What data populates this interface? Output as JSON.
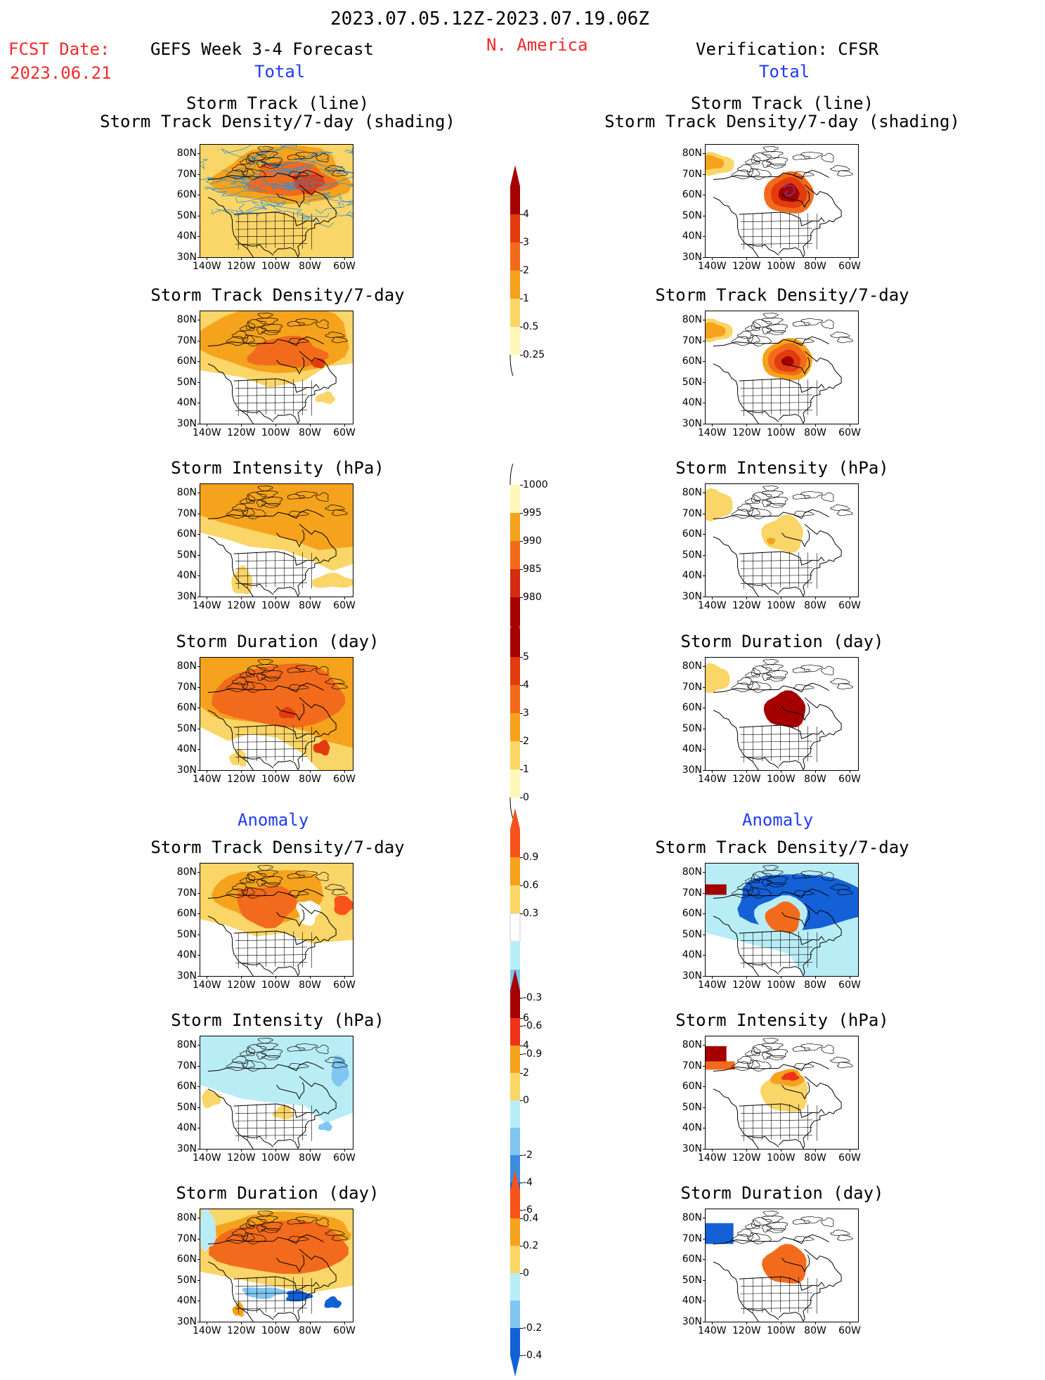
{
  "header": {
    "period": "2023.07.05.12Z-2023.07.19.06Z",
    "fcst_label": "FCST Date:",
    "fcst_date": "2023.06.21",
    "forecast_title": "GEFS Week 3-4 Forecast",
    "region": "N. America",
    "verification_title": "Verification: CFSR",
    "total_left": "Total",
    "total_right": "Total",
    "anomaly_left": "Anomaly",
    "anomaly_right": "Anomaly"
  },
  "axis": {
    "lat_labels": [
      "80N",
      "70N",
      "60N",
      "50N",
      "40N",
      "30N"
    ],
    "lon_labels": [
      "140W",
      "120W",
      "100W",
      "80W",
      "60W"
    ]
  },
  "panels": {
    "left": [
      {
        "title1": "Storm Track (line)",
        "title2": "Storm Track Density/7-day (shading)",
        "style": "tracks_fcst"
      },
      {
        "title1": "Storm Track Density/7-day",
        "title2": "",
        "style": "density_fcst"
      },
      {
        "title1": "Storm Intensity (hPa)",
        "title2": "",
        "style": "intensity_fcst"
      },
      {
        "title1": "Storm Duration (day)",
        "title2": "",
        "style": "duration_fcst"
      },
      {
        "title1": "Storm Track Density/7-day",
        "title2": "",
        "style": "anom_density_fcst"
      },
      {
        "title1": "Storm Intensity (hPa)",
        "title2": "",
        "style": "anom_intensity_fcst"
      },
      {
        "title1": "Storm Duration (day)",
        "title2": "",
        "style": "anom_duration_fcst"
      }
    ],
    "right": [
      {
        "title1": "Storm Track (line)",
        "title2": "Storm Track Density/7-day (shading)",
        "style": "tracks_obs"
      },
      {
        "title1": "Storm Track Density/7-day",
        "title2": "",
        "style": "density_obs"
      },
      {
        "title1": "Storm Intensity (hPa)",
        "title2": "",
        "style": "intensity_obs"
      },
      {
        "title1": "Storm Duration (day)",
        "title2": "",
        "style": "duration_obs"
      },
      {
        "title1": "Storm Track Density/7-day",
        "title2": "",
        "style": "anom_density_obs"
      },
      {
        "title1": "Storm Intensity (hPa)",
        "title2": "",
        "style": "anom_intensity_obs"
      },
      {
        "title1": "Storm Duration (day)",
        "title2": "",
        "style": "anom_duration_obs"
      }
    ]
  },
  "colorbars": [
    {
      "name": "density",
      "labels": [
        "4",
        "3",
        "2",
        "1",
        "0.5",
        "0.25"
      ],
      "colors": [
        "#a50000",
        "#e23b0e",
        "#f26b1c",
        "#f5a21d",
        "#fad567",
        "#fff7b8"
      ],
      "ends": "top"
    },
    {
      "name": "intensity",
      "labels": [
        "1000",
        "995",
        "990",
        "985",
        "980"
      ],
      "colors": [
        "#fff7b8",
        "#f5a21d",
        "#f26b1c",
        "#d42c10",
        "#a50000"
      ],
      "ends": "bottom"
    },
    {
      "name": "duration",
      "labels": [
        "5",
        "4",
        "3",
        "2",
        "1",
        "0"
      ],
      "colors": [
        "#a50000",
        "#e23b0e",
        "#f26b1c",
        "#f5a21d",
        "#fad567",
        "#fff7b8"
      ],
      "ends": "top"
    },
    {
      "name": "anom_density",
      "labels": [
        "0.9",
        "0.6",
        "0.3",
        "-0.3",
        "-0.6",
        "-0.9"
      ],
      "colors": [
        "#f8531a",
        "#f5a21d",
        "#fad567",
        "#ffffff",
        "#b9edf6",
        "#7fc6f0",
        "#3b8de0",
        "#1460d6"
      ],
      "ends": "both"
    },
    {
      "name": "anom_intensity",
      "labels": [
        "6",
        "4",
        "2",
        "0",
        "-2",
        "-4",
        "-6"
      ],
      "colors": [
        "#a50000",
        "#f0321a",
        "#f5a21d",
        "#fad567",
        "#b9edf6",
        "#7fc6f0",
        "#3b8de0",
        "#1460d6"
      ],
      "ends": "both"
    },
    {
      "name": "anom_duration",
      "labels": [
        "0.4",
        "0.2",
        "0",
        "-0.2",
        "-0.4"
      ],
      "colors": [
        "#f8531a",
        "#f5a21d",
        "#fad567",
        "#b9edf6",
        "#7fc6f0",
        "#1460d6"
      ],
      "ends": "both"
    }
  ],
  "colors": {
    "title_red": "#f22a2a",
    "title_blue": "#1f3bf5",
    "track_line": "#2f8fd6"
  }
}
